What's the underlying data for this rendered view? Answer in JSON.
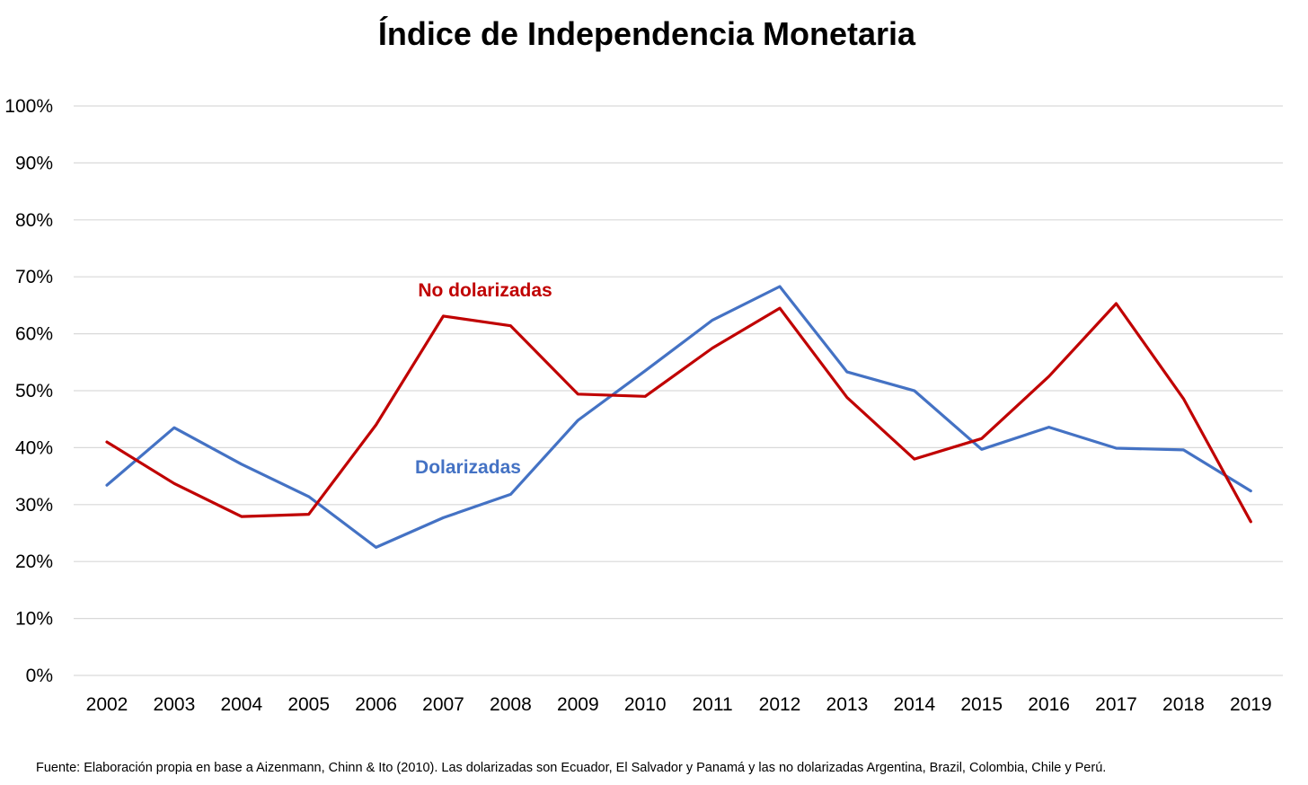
{
  "chart_data": {
    "type": "line",
    "title": "Índice de Independencia Monetaria",
    "xlabel": "",
    "ylabel": "",
    "categories": [
      "2002",
      "2003",
      "2004",
      "2005",
      "2006",
      "2007",
      "2008",
      "2009",
      "2010",
      "2011",
      "2012",
      "2013",
      "2014",
      "2015",
      "2016",
      "2017",
      "2018",
      "2019"
    ],
    "y_tick_labels": [
      "0%",
      "10%",
      "20%",
      "30%",
      "40%",
      "50%",
      "60%",
      "70%",
      "80%",
      "90%",
      "100%"
    ],
    "ylim": [
      0,
      1
    ],
    "grid": true,
    "legend": "none (direct labels on chart)",
    "series": [
      {
        "name": "No dolarizadas",
        "color": "#c00000",
        "values": [
          0.41,
          0.337,
          0.279,
          0.283,
          0.44,
          0.631,
          0.614,
          0.494,
          0.49,
          0.575,
          0.645,
          0.488,
          0.38,
          0.416,
          0.525,
          0.653,
          0.486,
          0.27
        ]
      },
      {
        "name": "Dolarizadas",
        "color": "#4472c4",
        "values": [
          0.334,
          0.435,
          0.371,
          0.314,
          0.225,
          0.277,
          0.318,
          0.448,
          0.535,
          0.624,
          0.683,
          0.533,
          0.5,
          0.397,
          0.436,
          0.399,
          0.396,
          0.324
        ]
      }
    ],
    "source_note": "Fuente: Elaboración propia en base a Aizenmann, Chinn & Ito (2010). Las dolarizadas son Ecuador, El Salvador y Panamá y las no dolarizadas Argentina, Brazil, Colombia, Chile y Perú."
  }
}
